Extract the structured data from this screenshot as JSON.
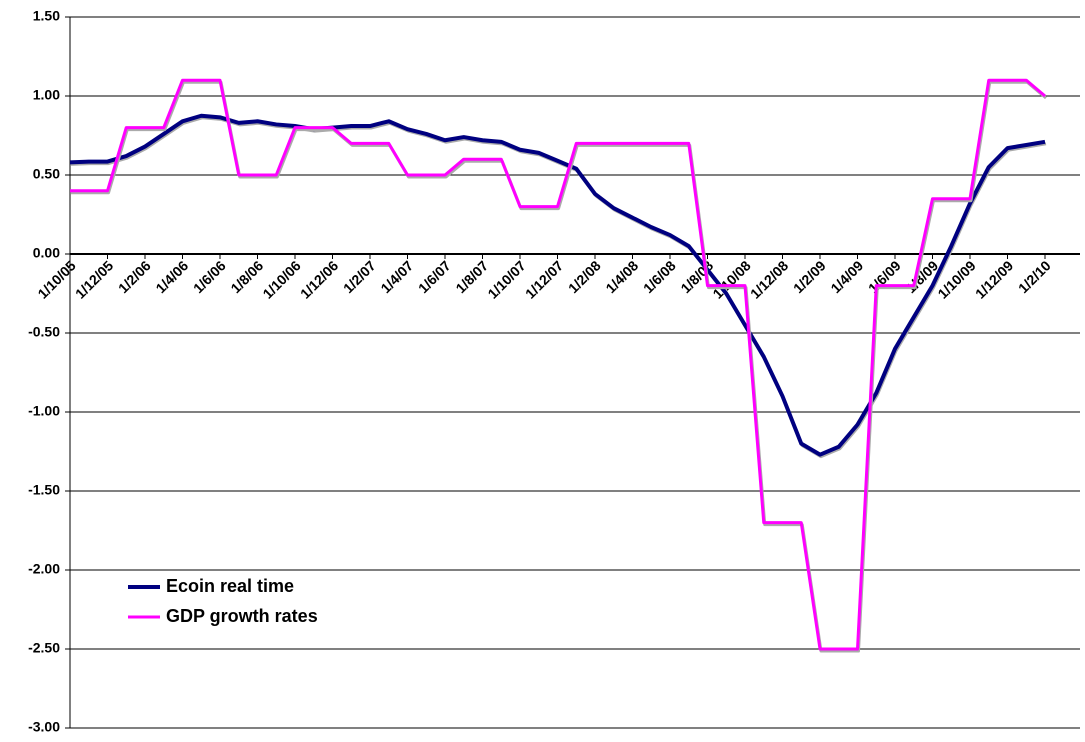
{
  "chart_data": {
    "type": "line",
    "categories": [
      "1/10/05",
      null,
      "1/12/05",
      null,
      "1/2/06",
      null,
      "1/4/06",
      null,
      "1/6/06",
      null,
      "1/8/06",
      null,
      "1/10/06",
      null,
      "1/12/06",
      null,
      "1/2/07",
      null,
      "1/4/07",
      null,
      "1/6/07",
      null,
      "1/8/07",
      null,
      "1/10/07",
      null,
      "1/12/07",
      null,
      "1/2/08",
      null,
      "1/4/08",
      null,
      "1/6/08",
      null,
      "1/8/08",
      null,
      "1/10/08",
      null,
      "1/12/08",
      null,
      "1/2/09",
      null,
      "1/4/09",
      null,
      "1/6/09",
      null,
      "1/8/09",
      null,
      "1/10/09",
      null,
      "1/12/09",
      null,
      "1/2/10"
    ],
    "series": [
      {
        "name": "Ecoin real time",
        "color": "#000080",
        "values": [
          0.58,
          0.585,
          0.585,
          0.62,
          0.68,
          0.76,
          0.84,
          0.875,
          0.865,
          0.83,
          0.84,
          0.82,
          0.81,
          0.79,
          0.8,
          0.81,
          0.81,
          0.84,
          0.79,
          0.76,
          0.72,
          0.74,
          0.72,
          0.71,
          0.66,
          0.64,
          0.59,
          0.54,
          0.38,
          0.29,
          0.23,
          0.17,
          0.12,
          0.05,
          -0.1,
          -0.25,
          -0.45,
          -0.65,
          -0.9,
          -1.2,
          -1.27,
          -1.22,
          -1.08,
          -0.88,
          -0.6,
          -0.4,
          -0.2,
          0.05,
          0.32,
          0.55,
          0.67,
          0.69,
          0.71
        ]
      },
      {
        "name": "GDP growth rates",
        "color": "#ff00ff",
        "values": [
          0.4,
          0.4,
          0.4,
          0.8,
          0.8,
          0.8,
          1.1,
          1.1,
          1.1,
          0.5,
          0.5,
          0.5,
          0.8,
          0.8,
          0.8,
          0.7,
          0.7,
          0.7,
          0.5,
          0.5,
          0.5,
          0.6,
          0.6,
          0.6,
          0.3,
          0.3,
          0.3,
          0.7,
          0.7,
          0.7,
          0.7,
          0.7,
          0.7,
          0.7,
          -0.2,
          -0.2,
          -0.2,
          -1.7,
          -1.7,
          -1.7,
          -2.5,
          -2.5,
          -2.5,
          -0.2,
          -0.2,
          -0.2,
          0.35,
          0.35,
          0.35,
          1.1,
          1.1,
          1.1,
          1.0
        ]
      }
    ],
    "ylim": [
      -3,
      1.5
    ],
    "yticks": [
      {
        "value": 1.5,
        "label": "1.50"
      },
      {
        "value": 1,
        "label": "1.00"
      },
      {
        "value": 0.5,
        "label": "0.50"
      },
      {
        "value": 0,
        "label": "0.00"
      },
      {
        "value": -0.5,
        "label": "-0.50"
      },
      {
        "value": -1,
        "label": "-1.00"
      },
      {
        "value": -1.5,
        "label": "-1.50"
      },
      {
        "value": -2,
        "label": "-2.00"
      },
      {
        "value": -2.5,
        "label": "-2.50"
      },
      {
        "value": -3,
        "label": "-3.00"
      }
    ],
    "grid": true,
    "legend": "lower left"
  }
}
